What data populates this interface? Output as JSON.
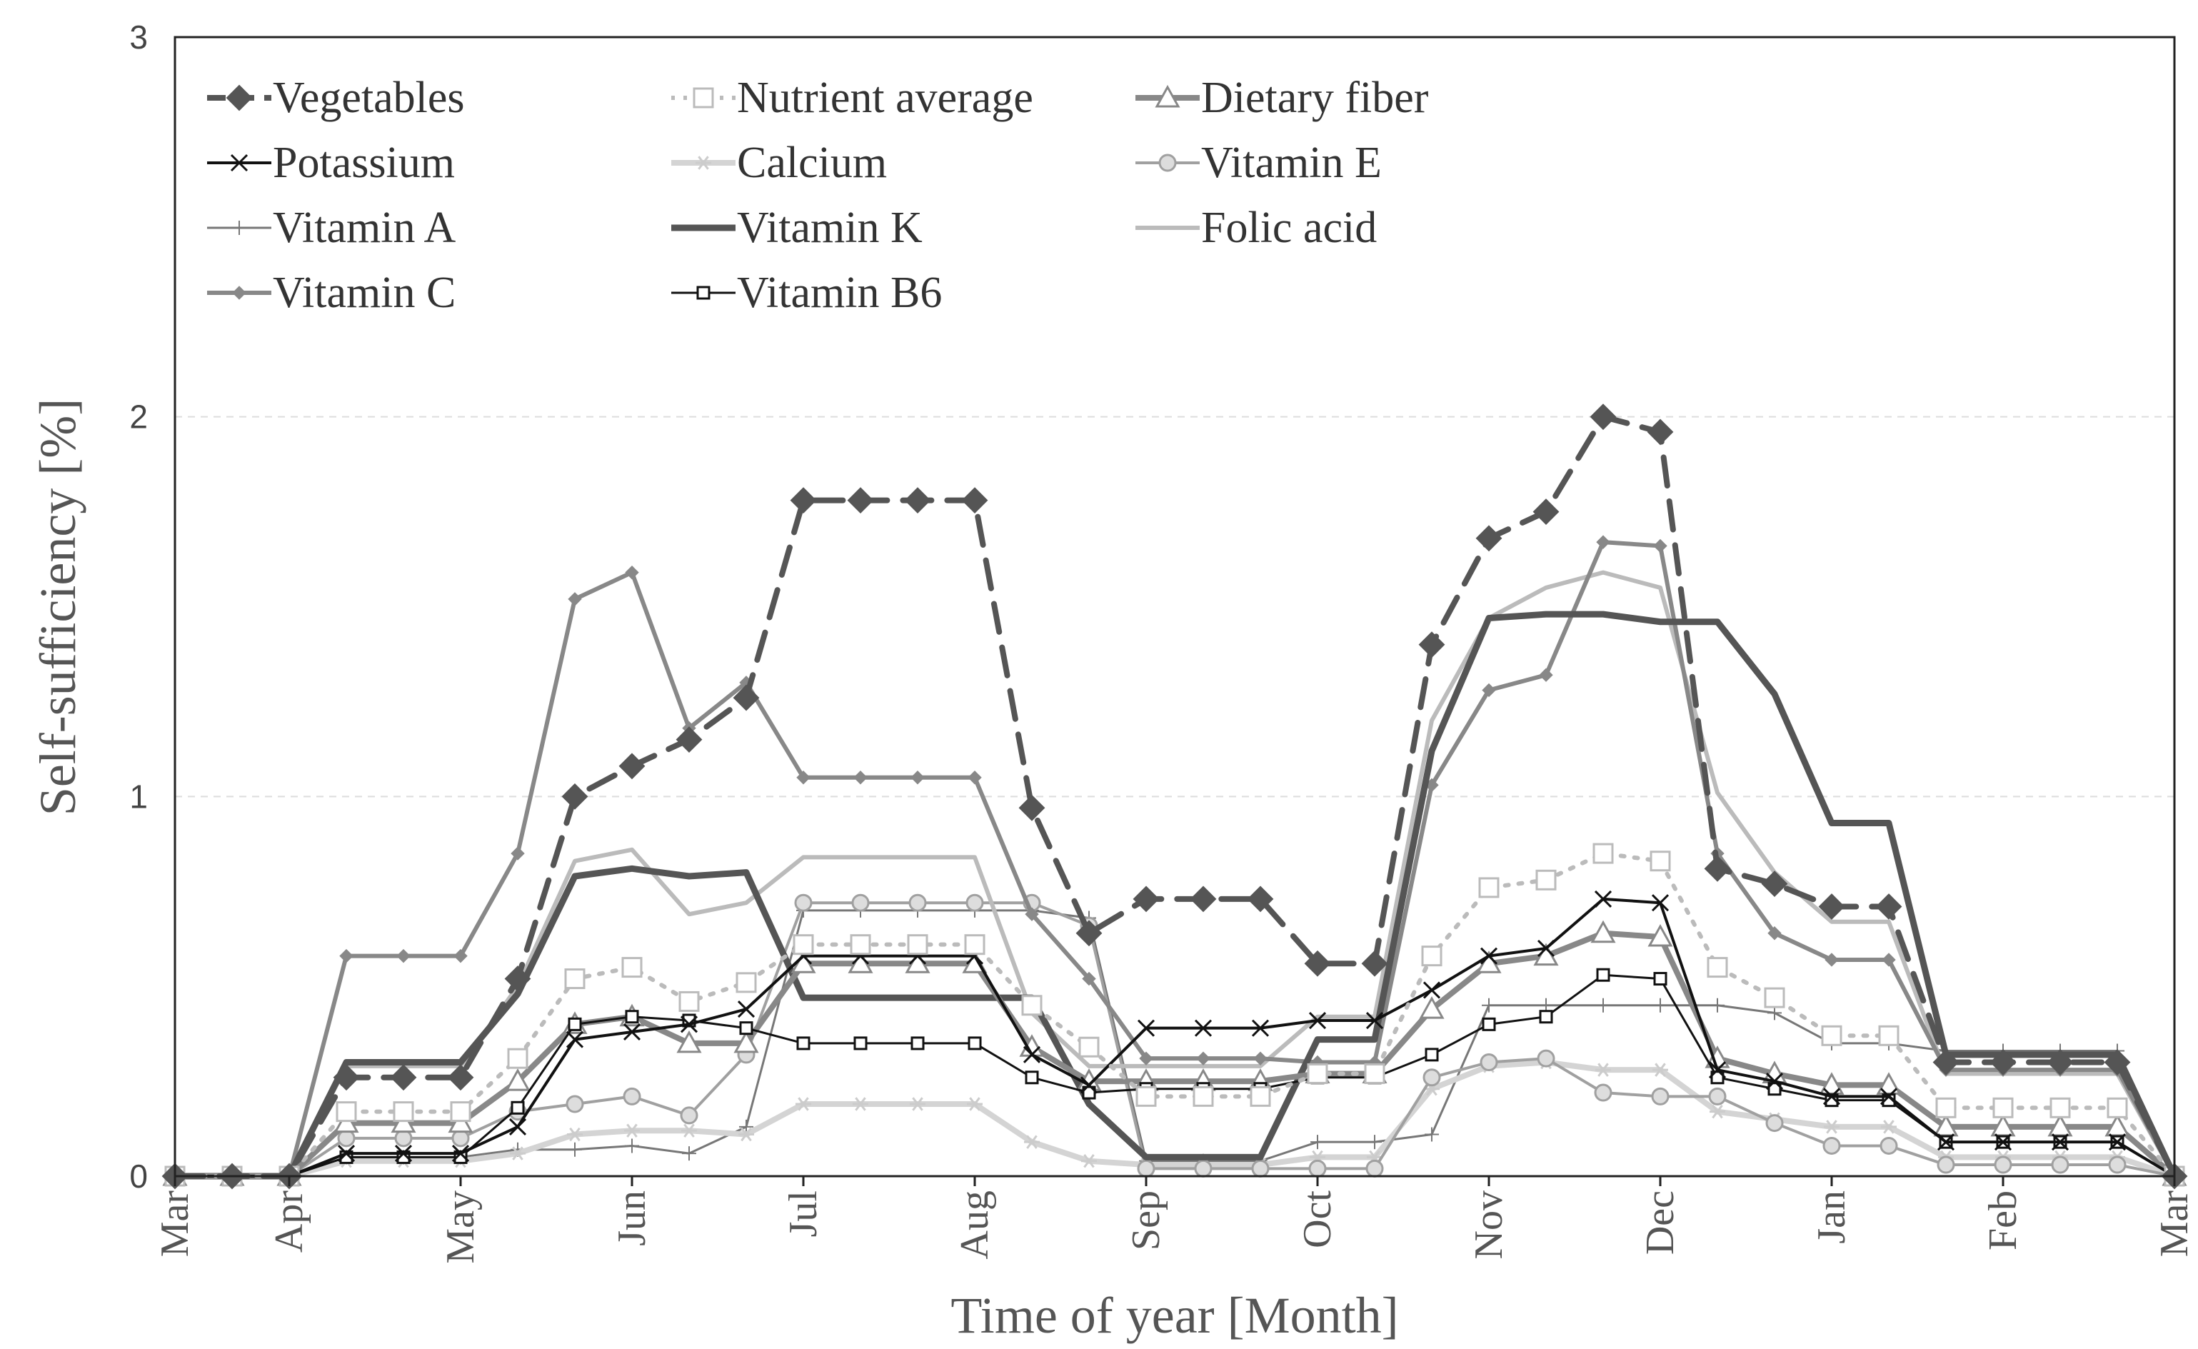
{
  "chart_data": {
    "type": "line",
    "xlabel": "Time of year [Month]",
    "ylabel": "Self-sufficiency [%]",
    "ylim": [
      0,
      3
    ],
    "yticks": [
      0,
      1,
      2,
      3
    ],
    "grid": true,
    "legend": "top-left",
    "x_tick_labels": [
      "Mar",
      "Apr",
      "May",
      "Jun",
      "Jul",
      "Aug",
      "Sep",
      "Oct",
      "Nov",
      "Dec",
      "Jan",
      "Feb",
      "Mar"
    ],
    "x_tick_positions": [
      0,
      2,
      5,
      8,
      11,
      14,
      17,
      20,
      23,
      26,
      29,
      32,
      35
    ],
    "x": [
      0,
      1,
      2,
      3,
      4,
      5,
      6,
      7,
      8,
      9,
      10,
      11,
      12,
      13,
      14,
      15,
      16,
      17,
      18,
      19,
      20,
      21,
      22,
      23,
      24,
      25,
      26,
      27,
      28,
      29,
      30,
      31,
      32,
      33,
      34,
      35
    ],
    "series": [
      {
        "name": "Vegetables",
        "color": "#555555",
        "dash": "dash",
        "marker": "diamond-filled",
        "width": 8,
        "values": [
          0,
          0,
          0,
          0.26,
          0.26,
          0.26,
          0.52,
          1.0,
          1.08,
          1.15,
          1.26,
          1.78,
          1.78,
          1.78,
          1.78,
          0.97,
          0.64,
          0.73,
          0.73,
          0.73,
          0.56,
          0.56,
          1.4,
          1.68,
          1.75,
          2.0,
          1.96,
          0.81,
          0.77,
          0.71,
          0.71,
          0.3,
          0.3,
          0.3,
          0.3,
          0
        ]
      },
      {
        "name": "Nutrient average",
        "color": "#bbbbbb",
        "dash": "dot",
        "marker": "square-open",
        "width": 6,
        "values": [
          0,
          0,
          0,
          0.17,
          0.17,
          0.17,
          0.31,
          0.52,
          0.55,
          0.46,
          0.51,
          0.61,
          0.61,
          0.61,
          0.61,
          0.45,
          0.34,
          0.21,
          0.21,
          0.21,
          0.27,
          0.27,
          0.58,
          0.76,
          0.78,
          0.85,
          0.83,
          0.55,
          0.47,
          0.37,
          0.37,
          0.18,
          0.18,
          0.18,
          0.18,
          0
        ]
      },
      {
        "name": "Dietary fiber",
        "color": "#888888",
        "dash": "solid",
        "marker": "triangle-open",
        "width": 8,
        "values": [
          0,
          0,
          0,
          0.14,
          0.14,
          0.14,
          0.25,
          0.4,
          0.42,
          0.35,
          0.35,
          0.56,
          0.56,
          0.56,
          0.56,
          0.34,
          0.25,
          0.25,
          0.25,
          0.25,
          0.27,
          0.27,
          0.44,
          0.56,
          0.58,
          0.64,
          0.63,
          0.31,
          0.27,
          0.24,
          0.24,
          0.13,
          0.13,
          0.13,
          0.13,
          0
        ]
      },
      {
        "name": "Potassium",
        "color": "#111111",
        "dash": "solid",
        "marker": "x",
        "width": 4,
        "values": [
          0,
          0,
          0,
          0.06,
          0.06,
          0.06,
          0.13,
          0.36,
          0.38,
          0.4,
          0.44,
          0.58,
          0.58,
          0.58,
          0.58,
          0.32,
          0.24,
          0.39,
          0.39,
          0.39,
          0.41,
          0.41,
          0.49,
          0.58,
          0.6,
          0.73,
          0.72,
          0.28,
          0.25,
          0.21,
          0.21,
          0.09,
          0.09,
          0.09,
          0.09,
          0
        ]
      },
      {
        "name": "Calcium",
        "color": "#d4d4d4",
        "dash": "solid",
        "marker": "star",
        "width": 8,
        "values": [
          0,
          0,
          0,
          0.04,
          0.04,
          0.04,
          0.06,
          0.11,
          0.12,
          0.12,
          0.11,
          0.19,
          0.19,
          0.19,
          0.19,
          0.09,
          0.04,
          0.03,
          0.03,
          0.03,
          0.05,
          0.05,
          0.23,
          0.29,
          0.3,
          0.28,
          0.28,
          0.17,
          0.15,
          0.13,
          0.13,
          0.05,
          0.05,
          0.05,
          0.05,
          0
        ]
      },
      {
        "name": "Vitamin E",
        "color": "#a0a0a0",
        "dash": "solid",
        "marker": "circle-open",
        "width": 4,
        "values": [
          0,
          0,
          0,
          0.1,
          0.1,
          0.1,
          0.17,
          0.19,
          0.21,
          0.16,
          0.32,
          0.72,
          0.72,
          0.72,
          0.72,
          0.72,
          0.66,
          0.02,
          0.02,
          0.02,
          0.02,
          0.02,
          0.26,
          0.3,
          0.31,
          0.22,
          0.21,
          0.21,
          0.14,
          0.08,
          0.08,
          0.03,
          0.03,
          0.03,
          0.03,
          0
        ]
      },
      {
        "name": "Vitamin A",
        "color": "#777777",
        "dash": "solid",
        "marker": "plus",
        "width": 3,
        "values": [
          0,
          0,
          0,
          0.05,
          0.05,
          0.05,
          0.07,
          0.07,
          0.08,
          0.06,
          0.13,
          0.7,
          0.7,
          0.7,
          0.7,
          0.7,
          0.68,
          0.04,
          0.04,
          0.04,
          0.09,
          0.09,
          0.11,
          0.45,
          0.45,
          0.45,
          0.45,
          0.45,
          0.43,
          0.35,
          0.35,
          0.33,
          0.33,
          0.33,
          0.33,
          0
        ]
      },
      {
        "name": "Vitamin K",
        "color": "#555555",
        "dash": "solid",
        "marker": "none",
        "width": 9,
        "values": [
          0,
          0,
          0,
          0.3,
          0.3,
          0.3,
          0.48,
          0.79,
          0.81,
          0.79,
          0.8,
          0.47,
          0.47,
          0.47,
          0.47,
          0.47,
          0.19,
          0.05,
          0.05,
          0.05,
          0.36,
          0.36,
          1.12,
          1.47,
          1.48,
          1.48,
          1.46,
          1.46,
          1.27,
          0.93,
          0.93,
          0.32,
          0.32,
          0.32,
          0.32,
          0
        ]
      },
      {
        "name": "Folic acid",
        "color": "#bbbbbb",
        "dash": "solid",
        "marker": "none",
        "width": 6,
        "values": [
          0,
          0,
          0,
          0.29,
          0.29,
          0.29,
          0.5,
          0.83,
          0.86,
          0.69,
          0.72,
          0.84,
          0.84,
          0.84,
          0.84,
          0.43,
          0.29,
          0.29,
          0.29,
          0.29,
          0.42,
          0.42,
          1.2,
          1.47,
          1.55,
          1.59,
          1.55,
          1.01,
          0.8,
          0.67,
          0.67,
          0.27,
          0.27,
          0.27,
          0.27,
          0
        ]
      },
      {
        "name": "Vitamin C",
        "color": "#888888",
        "dash": "solid",
        "marker": "diamond-small",
        "width": 6,
        "values": [
          0,
          0,
          0,
          0.58,
          0.58,
          0.58,
          0.85,
          1.52,
          1.59,
          1.18,
          1.3,
          1.05,
          1.05,
          1.05,
          1.05,
          0.69,
          0.52,
          0.31,
          0.31,
          0.31,
          0.3,
          0.3,
          1.03,
          1.28,
          1.32,
          1.67,
          1.66,
          0.85,
          0.64,
          0.57,
          0.57,
          0.28,
          0.28,
          0.28,
          0.28,
          0
        ]
      },
      {
        "name": "Vitamin B6",
        "color": "#111111",
        "dash": "solid",
        "marker": "square-small",
        "width": 3,
        "values": [
          0,
          0,
          0,
          0.05,
          0.05,
          0.05,
          0.18,
          0.4,
          0.42,
          0.41,
          0.39,
          0.35,
          0.35,
          0.35,
          0.35,
          0.26,
          0.22,
          0.23,
          0.23,
          0.23,
          0.26,
          0.26,
          0.32,
          0.4,
          0.42,
          0.53,
          0.52,
          0.26,
          0.23,
          0.2,
          0.2,
          0.09,
          0.09,
          0.09,
          0.09,
          0
        ]
      }
    ]
  }
}
